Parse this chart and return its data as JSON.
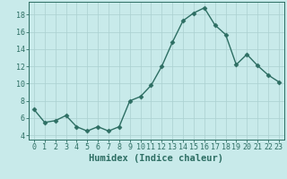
{
  "x": [
    0,
    1,
    2,
    3,
    4,
    5,
    6,
    7,
    8,
    9,
    10,
    11,
    12,
    13,
    14,
    15,
    16,
    17,
    18,
    19,
    20,
    21,
    22,
    23
  ],
  "y": [
    7.0,
    5.5,
    5.7,
    6.3,
    5.0,
    4.5,
    5.0,
    4.5,
    5.0,
    8.0,
    8.5,
    9.8,
    12.0,
    14.8,
    17.3,
    18.2,
    18.8,
    16.8,
    15.7,
    12.2,
    13.4,
    12.1,
    11.0,
    10.2
  ],
  "line_color": "#2d6e63",
  "marker": "D",
  "marker_size": 2.5,
  "bg_color": "#c8eaea",
  "grid_color": "#aad0d0",
  "xlabel": "Humidex (Indice chaleur)",
  "xlim": [
    -0.5,
    23.5
  ],
  "ylim": [
    3.5,
    19.5
  ],
  "yticks": [
    4,
    6,
    8,
    10,
    12,
    14,
    16,
    18
  ],
  "xticks": [
    0,
    1,
    2,
    3,
    4,
    5,
    6,
    7,
    8,
    9,
    10,
    11,
    12,
    13,
    14,
    15,
    16,
    17,
    18,
    19,
    20,
    21,
    22,
    23
  ],
  "tick_label_fontsize": 6,
  "xlabel_fontsize": 7.5,
  "linewidth": 1.0
}
